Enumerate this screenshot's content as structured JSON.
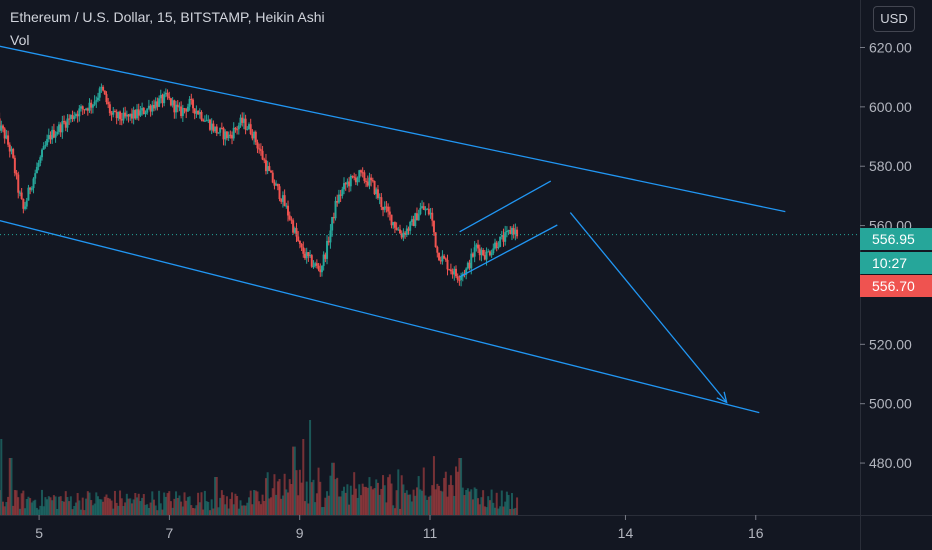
{
  "header": {
    "symbol": "Ethereum / U.S. Dollar, 15, BITSTAMP, Heikin Ashi",
    "volume_label": "Vol",
    "currency_button": "USD"
  },
  "price_tags": {
    "current_price": "556.95",
    "countdown": "10:27",
    "prev_price": "556.70"
  },
  "colors": {
    "background": "#131722",
    "up": "#26a69a",
    "down": "#ef5350",
    "trendline": "#2196f3",
    "grid_separator": "#2a2e39",
    "countdown_tag": "#26a69a"
  },
  "chart_data": {
    "type": "candlestick",
    "subtype": "Heikin Ashi",
    "interval": "15",
    "title": "Ethereum / U.S. Dollar, 15, BITSTAMP, Heikin Ashi",
    "x_tick_labels": [
      "5",
      "7",
      "9",
      "11",
      "14",
      "16"
    ],
    "y_tick_labels": [
      "620.00",
      "600.00",
      "580.00",
      "560.00",
      "520.00",
      "500.00",
      "480.00"
    ],
    "y_ticks": [
      620,
      600,
      580,
      560,
      520,
      500,
      480
    ],
    "ylim": [
      462.5,
      636
    ],
    "x_range_days": [
      4.4,
      17.6
    ],
    "grid": false,
    "current_price": 556.95,
    "price_path": [
      [
        4.38,
        595
      ],
      [
        4.5,
        591
      ],
      [
        4.62,
        584
      ],
      [
        4.72,
        572
      ],
      [
        4.8,
        565
      ],
      [
        4.9,
        573
      ],
      [
        5.05,
        582
      ],
      [
        5.2,
        590
      ],
      [
        5.4,
        594
      ],
      [
        5.6,
        598
      ],
      [
        5.85,
        601
      ],
      [
        6.0,
        606
      ],
      [
        6.15,
        597
      ],
      [
        6.35,
        596
      ],
      [
        6.6,
        598
      ],
      [
        6.8,
        601
      ],
      [
        7.0,
        603
      ],
      [
        7.2,
        598
      ],
      [
        7.35,
        601
      ],
      [
        7.55,
        597
      ],
      [
        7.75,
        592
      ],
      [
        7.95,
        590
      ],
      [
        8.15,
        595
      ],
      [
        8.3,
        592
      ],
      [
        8.45,
        584
      ],
      [
        8.6,
        576
      ],
      [
        8.75,
        570
      ],
      [
        8.9,
        562
      ],
      [
        9.05,
        552
      ],
      [
        9.2,
        548
      ],
      [
        9.35,
        545
      ],
      [
        9.45,
        552
      ],
      [
        9.6,
        568
      ],
      [
        9.75,
        574
      ],
      [
        9.95,
        577
      ],
      [
        10.15,
        574
      ],
      [
        10.3,
        567
      ],
      [
        10.45,
        562
      ],
      [
        10.6,
        557
      ],
      [
        10.75,
        560
      ],
      [
        10.9,
        566
      ],
      [
        11.05,
        564
      ],
      [
        11.15,
        551
      ],
      [
        11.3,
        547
      ],
      [
        11.45,
        543
      ],
      [
        11.6,
        545
      ],
      [
        11.75,
        553
      ],
      [
        11.9,
        550
      ],
      [
        12.05,
        554
      ],
      [
        12.2,
        556
      ],
      [
        12.3,
        559
      ],
      [
        12.38,
        557
      ]
    ],
    "volume_range": [
      0,
      100
    ],
    "annotations": [
      {
        "type": "trendline",
        "name": "channel-upper",
        "points": [
          [
            4.4,
            620.6
          ],
          [
            16.5,
            564.7
          ]
        ]
      },
      {
        "type": "trendline",
        "name": "channel-lower",
        "points": [
          [
            4.4,
            561.9
          ],
          [
            16.1,
            497.0
          ]
        ]
      },
      {
        "type": "trendline",
        "name": "flag-upper",
        "points": [
          [
            11.5,
            557.9
          ],
          [
            12.9,
            575.0
          ]
        ]
      },
      {
        "type": "trendline",
        "name": "flag-lower",
        "points": [
          [
            11.5,
            542.7
          ],
          [
            13.0,
            560.2
          ]
        ]
      },
      {
        "type": "arrow",
        "name": "projection-arrow",
        "points": [
          [
            13.2,
            564.4
          ],
          [
            15.6,
            500.4
          ]
        ]
      }
    ]
  }
}
